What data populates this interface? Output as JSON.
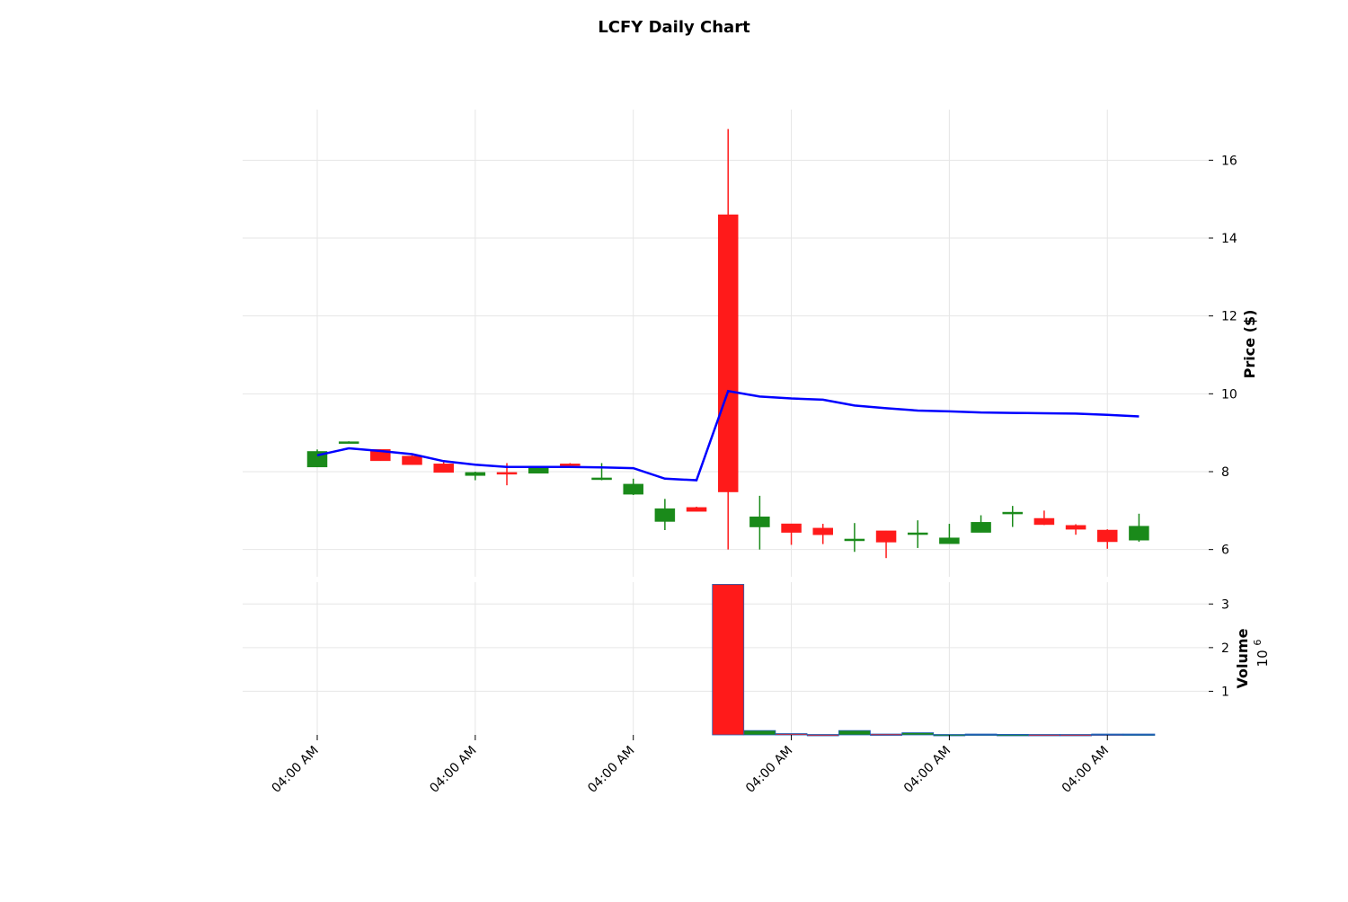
{
  "chart_data": {
    "type": "candlestick",
    "title": "LCFY Daily Chart",
    "price_panel": {
      "ylabel": "Price ($)",
      "ylim": [
        5.3,
        17.3
      ],
      "yticks": [
        6,
        8,
        10,
        12,
        14,
        16
      ],
      "grid": true
    },
    "volume_panel": {
      "ylabel": "Volume",
      "scale_label": "10",
      "scale_exp": "6",
      "ylim": [
        0,
        3.5
      ],
      "yticks": [
        1,
        2,
        3
      ],
      "grid": true
    },
    "x_tick_labels": [
      "04:00 AM",
      "04:00 AM",
      "04:00 AM",
      "04:00 AM",
      "04:00 AM",
      "04:00 AM"
    ],
    "x_tick_positions": [
      0,
      5,
      10,
      15,
      20,
      25
    ],
    "colors": {
      "up": "#1a8a1a",
      "down": "#ff1a1a",
      "ma_line": "#0000ff",
      "volume_edge": "#1f5fb4"
    },
    "candles": [
      {
        "o": 8.12,
        "h": 8.57,
        "l": 8.12,
        "c": 8.52,
        "v": 0
      },
      {
        "o": 8.75,
        "h": 8.78,
        "l": 8.73,
        "c": 8.77,
        "v": 0
      },
      {
        "o": 8.57,
        "h": 8.57,
        "l": 8.28,
        "c": 8.28,
        "v": 0
      },
      {
        "o": 8.4,
        "h": 8.42,
        "l": 8.18,
        "c": 8.18,
        "v": 0
      },
      {
        "o": 8.2,
        "h": 8.3,
        "l": 7.98,
        "c": 7.98,
        "v": 0
      },
      {
        "o": 7.9,
        "h": 8.0,
        "l": 7.78,
        "c": 7.98,
        "v": 0
      },
      {
        "o": 7.98,
        "h": 8.22,
        "l": 7.65,
        "c": 7.96,
        "v": 0
      },
      {
        "o": 7.96,
        "h": 8.15,
        "l": 7.96,
        "c": 8.14,
        "v": 0
      },
      {
        "o": 8.2,
        "h": 8.22,
        "l": 8.18,
        "c": 8.19,
        "v": 0
      },
      {
        "o": 7.8,
        "h": 8.22,
        "l": 7.78,
        "c": 7.84,
        "v": 0
      },
      {
        "o": 7.42,
        "h": 7.82,
        "l": 7.4,
        "c": 7.68,
        "v": 0
      },
      {
        "o": 6.72,
        "h": 7.3,
        "l": 6.5,
        "c": 7.05,
        "v": 0
      },
      {
        "o": 7.08,
        "h": 7.1,
        "l": 6.98,
        "c": 6.98,
        "v": 0
      },
      {
        "o": 14.6,
        "h": 16.8,
        "l": 6.0,
        "c": 7.48,
        "v": 3.45
      },
      {
        "o": 6.58,
        "h": 7.38,
        "l": 6.0,
        "c": 6.84,
        "v": 0.1
      },
      {
        "o": 6.66,
        "h": 6.66,
        "l": 6.12,
        "c": 6.44,
        "v": 0.03
      },
      {
        "o": 6.55,
        "h": 6.66,
        "l": 6.14,
        "c": 6.38,
        "v": 0.01
      },
      {
        "o": 6.24,
        "h": 6.68,
        "l": 5.94,
        "c": 6.27,
        "v": 0.1
      },
      {
        "o": 6.48,
        "h": 6.48,
        "l": 5.78,
        "c": 6.19,
        "v": 0.02
      },
      {
        "o": 6.4,
        "h": 6.75,
        "l": 6.04,
        "c": 6.43,
        "v": 0.05
      },
      {
        "o": 6.15,
        "h": 6.66,
        "l": 6.15,
        "c": 6.3,
        "v": 0.01
      },
      {
        "o": 6.44,
        "h": 6.88,
        "l": 6.44,
        "c": 6.7,
        "v": 0.02
      },
      {
        "o": 6.93,
        "h": 7.12,
        "l": 6.58,
        "c": 6.96,
        "v": 0.01
      },
      {
        "o": 6.8,
        "h": 7.0,
        "l": 6.63,
        "c": 6.64,
        "v": 0.01
      },
      {
        "o": 6.62,
        "h": 6.65,
        "l": 6.38,
        "c": 6.52,
        "v": 0.01
      },
      {
        "o": 6.5,
        "h": 6.52,
        "l": 6.02,
        "c": 6.2,
        "v": 0.02
      },
      {
        "o": 6.24,
        "h": 6.92,
        "l": 6.2,
        "c": 6.6,
        "v": 0.02
      }
    ],
    "ma_series": {
      "values": [
        8.42,
        8.6,
        8.53,
        8.45,
        8.27,
        8.18,
        8.12,
        8.12,
        8.12,
        8.11,
        8.09,
        7.82,
        7.78,
        10.07,
        9.93,
        9.88,
        9.85,
        9.7,
        9.63,
        9.57,
        9.55,
        9.52,
        9.51,
        9.5,
        9.49,
        9.46,
        9.42
      ]
    }
  }
}
